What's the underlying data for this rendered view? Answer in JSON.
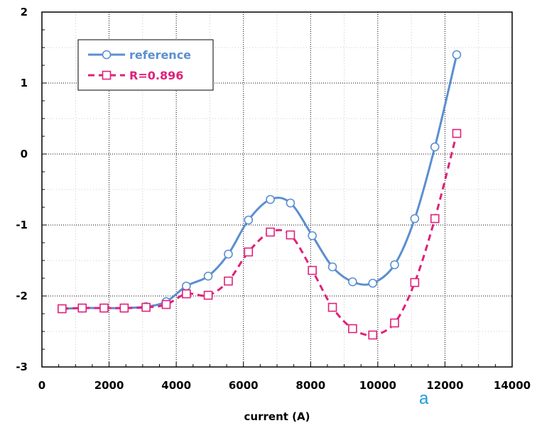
{
  "chart_data": {
    "type": "line",
    "title": "",
    "xlabel": "current (A)",
    "ylabel": "",
    "xlim": [
      0,
      14000
    ],
    "ylim": [
      -3,
      2
    ],
    "xticks": [
      0,
      2000,
      4000,
      6000,
      8000,
      10000,
      12000,
      14000
    ],
    "yticks": [
      -3,
      -2,
      -1,
      0,
      1,
      2
    ],
    "grid": true,
    "legend_position": "top-left",
    "series": [
      {
        "name": "reference",
        "color": "#5b8fd0",
        "marker": "circle",
        "line_style": "solid",
        "x": [
          600,
          1200,
          1850,
          2450,
          3100,
          3700,
          4300,
          4950,
          5550,
          6150,
          6800,
          7400,
          8050,
          8650,
          9250,
          9850,
          10500,
          11100,
          11700,
          12350
        ],
        "y": [
          -2.18,
          -2.17,
          -2.17,
          -2.17,
          -2.15,
          -2.08,
          -1.86,
          -1.72,
          -1.41,
          -0.93,
          -0.64,
          -0.69,
          -1.15,
          -1.59,
          -1.8,
          -1.82,
          -1.56,
          -0.91,
          0.1,
          1.4
        ]
      },
      {
        "name": "R=0.896",
        "color": "#e0207a",
        "marker": "square",
        "line_style": "dashed",
        "x": [
          600,
          1200,
          1850,
          2450,
          3100,
          3700,
          4300,
          4950,
          5550,
          6150,
          6800,
          7400,
          8050,
          8650,
          9250,
          9850,
          10500,
          11100,
          11700,
          12350
        ],
        "y": [
          -2.18,
          -2.17,
          -2.17,
          -2.17,
          -2.16,
          -2.12,
          -1.97,
          -1.99,
          -1.79,
          -1.38,
          -1.1,
          -1.14,
          -1.64,
          -2.16,
          -2.46,
          -2.55,
          -2.38,
          -1.81,
          -0.91,
          0.29
        ]
      }
    ],
    "stray_text": "a"
  }
}
